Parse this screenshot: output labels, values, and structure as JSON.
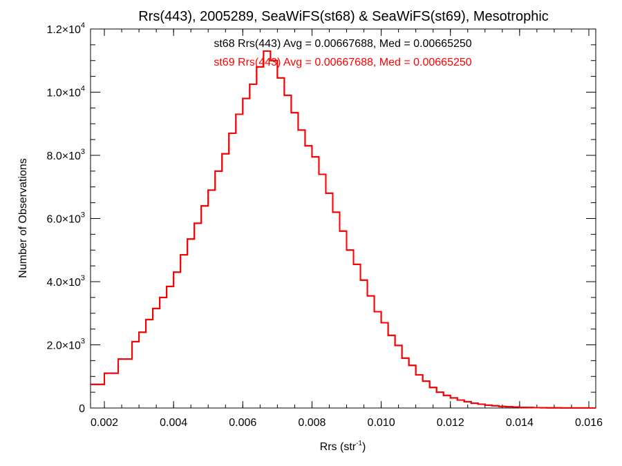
{
  "chart_data": {
    "type": "line",
    "title": "Rrs(443), 2005289, SeaWiFS(st68) & SeaWiFS(st69), Mesotrophic",
    "xlabel_main": "Rrs (str",
    "xlabel_sup": "-1",
    "xlabel_end": ")",
    "ylabel": "Number of Observations",
    "xlim": [
      0.0016,
      0.0162
    ],
    "ylim": [
      0,
      12000
    ],
    "x_ticks": [
      {
        "value": 0.002,
        "label": "0.002"
      },
      {
        "value": 0.004,
        "label": "0.004"
      },
      {
        "value": 0.006,
        "label": "0.006"
      },
      {
        "value": 0.008,
        "label": "0.008"
      },
      {
        "value": 0.01,
        "label": "0.010"
      },
      {
        "value": 0.012,
        "label": "0.012"
      },
      {
        "value": 0.014,
        "label": "0.014"
      },
      {
        "value": 0.016,
        "label": "0.016"
      }
    ],
    "y_ticks": [
      {
        "value": 0,
        "mant": "0",
        "exp": ""
      },
      {
        "value": 2000,
        "mant": "2.0×10",
        "exp": "3"
      },
      {
        "value": 4000,
        "mant": "4.0×10",
        "exp": "3"
      },
      {
        "value": 6000,
        "mant": "6.0×10",
        "exp": "3"
      },
      {
        "value": 8000,
        "mant": "8.0×10",
        "exp": "3"
      },
      {
        "value": 10000,
        "mant": "1.0×10",
        "exp": "4"
      },
      {
        "value": 12000,
        "mant": "1.2×10",
        "exp": "4"
      }
    ],
    "annotations": [
      {
        "text": "st68 Rrs(443) Avg = 0.00667688, Med = 0.00665250",
        "color": "#000000"
      },
      {
        "text": "st69 Rrs(443) Avg = 0.00667688, Med = 0.00665250",
        "color": "#ff0000"
      }
    ],
    "series": [
      {
        "color": "#000000",
        "x": [
          0.0016,
          0.002,
          0.0024,
          0.0028,
          0.003,
          0.0032,
          0.0034,
          0.0036,
          0.0038,
          0.004,
          0.0042,
          0.0044,
          0.0046,
          0.0048,
          0.005,
          0.0052,
          0.0054,
          0.0056,
          0.0058,
          0.006,
          0.0062,
          0.0064,
          0.0066,
          0.0068,
          0.007,
          0.0072,
          0.0074,
          0.0076,
          0.0078,
          0.008,
          0.0082,
          0.0084,
          0.0086,
          0.0088,
          0.009,
          0.0092,
          0.0094,
          0.0096,
          0.0098,
          0.01,
          0.0102,
          0.0104,
          0.0106,
          0.0108,
          0.011,
          0.0112,
          0.0114,
          0.0116,
          0.0118,
          0.012,
          0.0122,
          0.0124,
          0.0126,
          0.0128,
          0.013,
          0.0132,
          0.0134,
          0.0136,
          0.0138,
          0.014,
          0.0142,
          0.0144,
          0.0146,
          0.0148,
          0.015,
          0.0152,
          0.0154,
          0.0156,
          0.0158,
          0.016,
          0.0162
        ],
        "y": [
          750,
          1100,
          1550,
          2100,
          2400,
          2800,
          3150,
          3500,
          3850,
          4300,
          4850,
          5350,
          5850,
          6400,
          6900,
          7500,
          8050,
          8700,
          9300,
          9800,
          10250,
          10800,
          11300,
          11000,
          10450,
          9900,
          9350,
          8800,
          8300,
          7950,
          7400,
          6800,
          6200,
          5600,
          5000,
          4550,
          4050,
          3550,
          3050,
          2700,
          2300,
          1980,
          1580,
          1350,
          1050,
          850,
          650,
          500,
          400,
          320,
          250,
          200,
          150,
          120,
          90,
          70,
          50,
          40,
          30,
          20,
          15,
          10,
          8,
          6,
          5,
          4,
          3,
          2,
          2,
          1,
          1
        ]
      },
      {
        "color": "#ff0000",
        "x": [
          0.0016,
          0.002,
          0.0024,
          0.0028,
          0.003,
          0.0032,
          0.0034,
          0.0036,
          0.0038,
          0.004,
          0.0042,
          0.0044,
          0.0046,
          0.0048,
          0.005,
          0.0052,
          0.0054,
          0.0056,
          0.0058,
          0.006,
          0.0062,
          0.0064,
          0.0066,
          0.0068,
          0.007,
          0.0072,
          0.0074,
          0.0076,
          0.0078,
          0.008,
          0.0082,
          0.0084,
          0.0086,
          0.0088,
          0.009,
          0.0092,
          0.0094,
          0.0096,
          0.0098,
          0.01,
          0.0102,
          0.0104,
          0.0106,
          0.0108,
          0.011,
          0.0112,
          0.0114,
          0.0116,
          0.0118,
          0.012,
          0.0122,
          0.0124,
          0.0126,
          0.0128,
          0.013,
          0.0132,
          0.0134,
          0.0136,
          0.0138,
          0.014,
          0.0142,
          0.0144,
          0.0146,
          0.0148,
          0.015,
          0.0152,
          0.0154,
          0.0156,
          0.0158,
          0.016,
          0.0162
        ],
        "y": [
          750,
          1100,
          1550,
          2100,
          2400,
          2800,
          3150,
          3500,
          3850,
          4300,
          4850,
          5350,
          5850,
          6400,
          6900,
          7500,
          8050,
          8700,
          9300,
          9800,
          10250,
          10800,
          11300,
          11000,
          10450,
          9900,
          9350,
          8800,
          8300,
          7950,
          7400,
          6800,
          6200,
          5600,
          5000,
          4550,
          4050,
          3550,
          3050,
          2700,
          2300,
          1980,
          1580,
          1350,
          1050,
          850,
          650,
          500,
          400,
          320,
          250,
          200,
          150,
          120,
          90,
          70,
          50,
          40,
          30,
          20,
          15,
          10,
          8,
          6,
          5,
          4,
          3,
          2,
          2,
          1,
          1
        ]
      }
    ]
  }
}
